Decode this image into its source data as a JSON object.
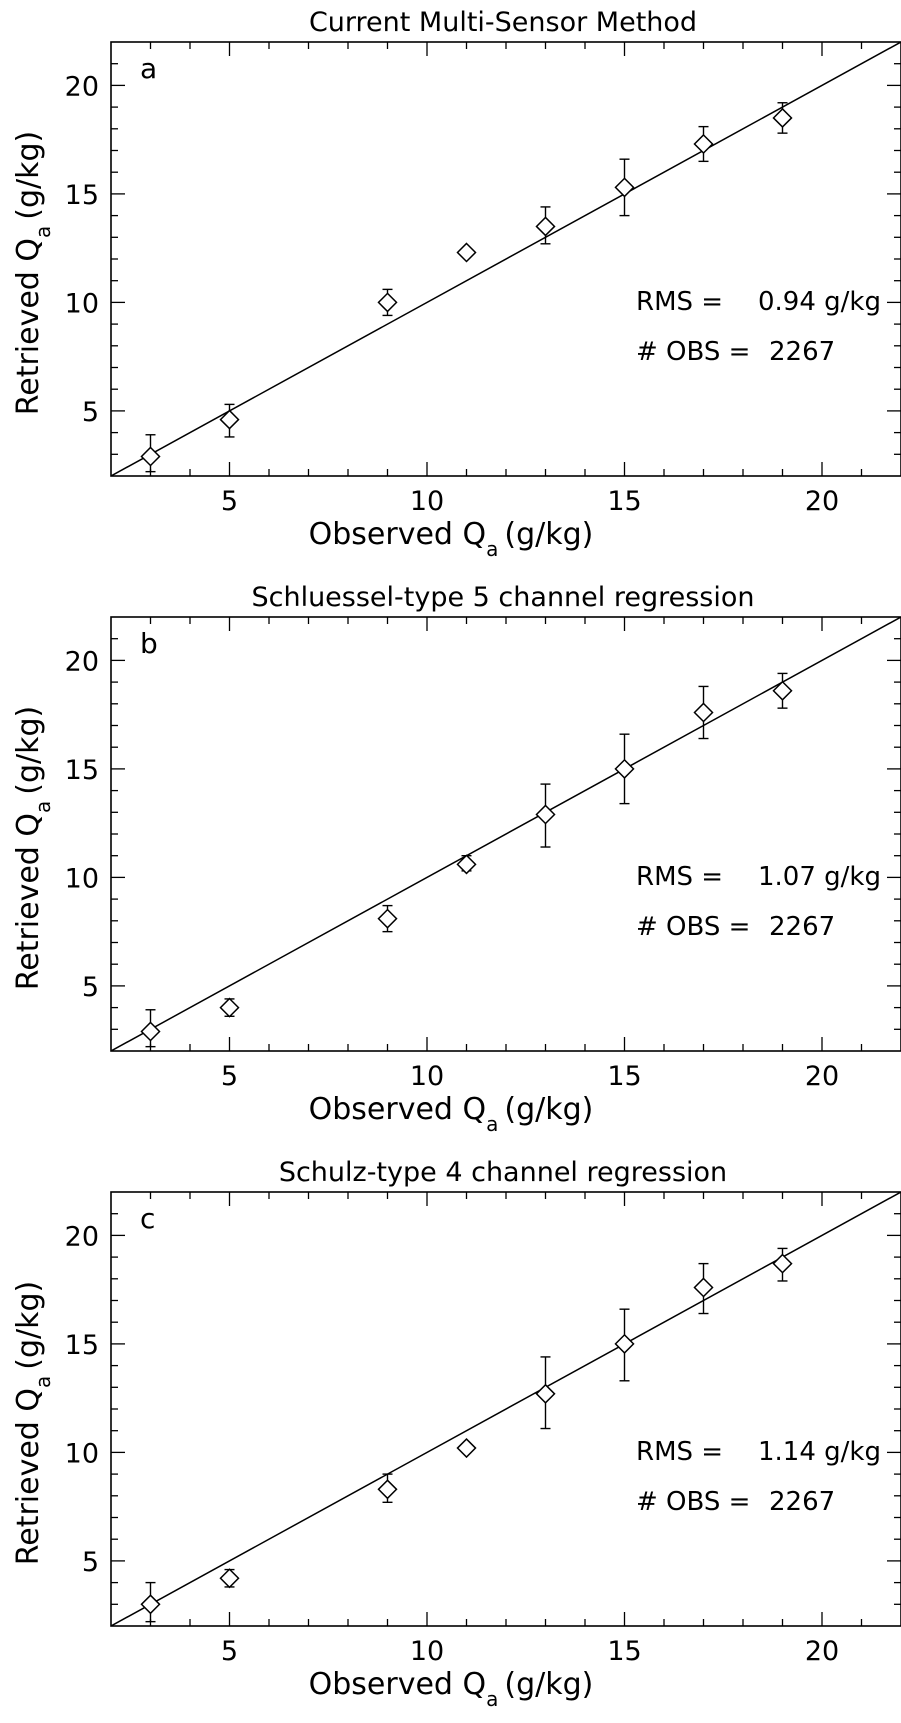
{
  "chart_data": [
    {
      "type": "scatter",
      "panel_label": "a",
      "title": "Current Multi-Sensor Method",
      "xlabel": "Observed Q",
      "xlabel_subscript": "a",
      "xlabel_units": "(g/kg)",
      "ylabel": "Retrieved Q",
      "ylabel_subscript": "a",
      "ylabel_units": "(g/kg)",
      "xlim": [
        2,
        22
      ],
      "ylim": [
        2,
        22
      ],
      "xticks": [
        5,
        10,
        15,
        20
      ],
      "yticks": [
        5,
        10,
        15,
        20
      ],
      "grid": false,
      "marker": "diamond",
      "one_to_one_line": true,
      "points": [
        {
          "x": 3,
          "y": 2.9,
          "err_low": 2.2,
          "err_high": 3.9
        },
        {
          "x": 5,
          "y": 4.6,
          "err_low": 3.8,
          "err_high": 5.3
        },
        {
          "x": 9,
          "y": 10.0,
          "err_low": 9.4,
          "err_high": 10.6
        },
        {
          "x": 11,
          "y": 12.3,
          "err_low": 12.2,
          "err_high": 12.4
        },
        {
          "x": 13,
          "y": 13.5,
          "err_low": 12.7,
          "err_high": 14.4
        },
        {
          "x": 15,
          "y": 15.3,
          "err_low": 14.0,
          "err_high": 16.6
        },
        {
          "x": 17,
          "y": 17.3,
          "err_low": 16.5,
          "err_high": 18.1
        },
        {
          "x": 19,
          "y": 18.5,
          "err_low": 17.8,
          "err_high": 19.2
        }
      ],
      "stats": {
        "rms_label": "RMS =",
        "rms_value": "0.94 g/kg",
        "obs_label": "# OBS =",
        "obs_value": "2267"
      }
    },
    {
      "type": "scatter",
      "panel_label": "b",
      "title": "Schluessel-type 5 channel regression",
      "xlabel": "Observed Q",
      "xlabel_subscript": "a",
      "xlabel_units": "(g/kg)",
      "ylabel": "Retrieved Q",
      "ylabel_subscript": "a",
      "ylabel_units": "(g/kg)",
      "xlim": [
        2,
        22
      ],
      "ylim": [
        2,
        22
      ],
      "xticks": [
        5,
        10,
        15,
        20
      ],
      "yticks": [
        5,
        10,
        15,
        20
      ],
      "grid": false,
      "marker": "diamond",
      "one_to_one_line": true,
      "points": [
        {
          "x": 3,
          "y": 2.9,
          "err_low": 2.2,
          "err_high": 3.9
        },
        {
          "x": 5,
          "y": 4.0,
          "err_low": 3.6,
          "err_high": 4.4
        },
        {
          "x": 9,
          "y": 8.1,
          "err_low": 7.5,
          "err_high": 8.7
        },
        {
          "x": 11,
          "y": 10.6,
          "err_low": 10.3,
          "err_high": 11.0
        },
        {
          "x": 13,
          "y": 12.9,
          "err_low": 11.4,
          "err_high": 14.3
        },
        {
          "x": 15,
          "y": 15.0,
          "err_low": 13.4,
          "err_high": 16.6
        },
        {
          "x": 17,
          "y": 17.6,
          "err_low": 16.4,
          "err_high": 18.8
        },
        {
          "x": 19,
          "y": 18.6,
          "err_low": 17.8,
          "err_high": 19.4
        }
      ],
      "stats": {
        "rms_label": "RMS =",
        "rms_value": "1.07 g/kg",
        "obs_label": "# OBS =",
        "obs_value": "2267"
      }
    },
    {
      "type": "scatter",
      "panel_label": "c",
      "title": "Schulz-type 4 channel regression",
      "xlabel": "Observed Q",
      "xlabel_subscript": "a",
      "xlabel_units": "(g/kg)",
      "ylabel": "Retrieved Q",
      "ylabel_subscript": "a",
      "ylabel_units": "(g/kg)",
      "xlim": [
        2,
        22
      ],
      "ylim": [
        2,
        22
      ],
      "xticks": [
        5,
        10,
        15,
        20
      ],
      "yticks": [
        5,
        10,
        15,
        20
      ],
      "grid": false,
      "marker": "diamond",
      "one_to_one_line": true,
      "points": [
        {
          "x": 3,
          "y": 3.0,
          "err_low": 2.2,
          "err_high": 4.0
        },
        {
          "x": 5,
          "y": 4.2,
          "err_low": 3.8,
          "err_high": 4.6
        },
        {
          "x": 9,
          "y": 8.3,
          "err_low": 7.7,
          "err_high": 9.0
        },
        {
          "x": 11,
          "y": 10.2,
          "err_low": 10.0,
          "err_high": 10.4
        },
        {
          "x": 13,
          "y": 12.7,
          "err_low": 11.1,
          "err_high": 14.4
        },
        {
          "x": 15,
          "y": 15.0,
          "err_low": 13.3,
          "err_high": 16.6
        },
        {
          "x": 17,
          "y": 17.6,
          "err_low": 16.4,
          "err_high": 18.7
        },
        {
          "x": 19,
          "y": 18.7,
          "err_low": 17.9,
          "err_high": 19.4
        }
      ],
      "stats": {
        "rms_label": "RMS =",
        "rms_value": "1.14 g/kg",
        "obs_label": "# OBS =",
        "obs_value": "2267"
      }
    }
  ]
}
